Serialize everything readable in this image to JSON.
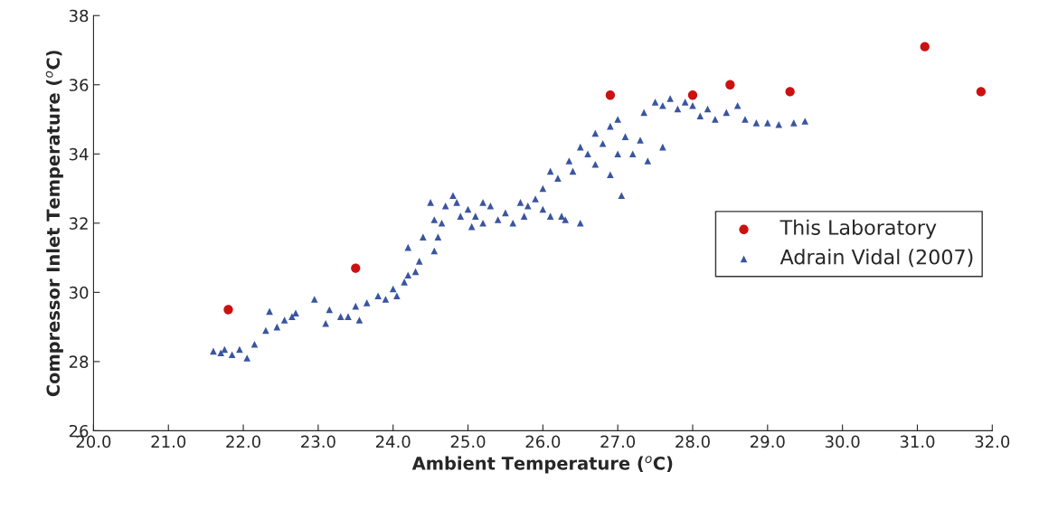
{
  "chart_data": {
    "type": "scatter",
    "xlabel": "Ambient Temperature ($^{o}$C)",
    "ylabel": "Compressor Inlet Temperature ($^{o}$C)",
    "xlim": [
      20,
      32
    ],
    "ylim": [
      26,
      38
    ],
    "xticks": [
      {
        "value": 20,
        "label": "20.0"
      },
      {
        "value": 21,
        "label": "21.0"
      },
      {
        "value": 22,
        "label": "22.0"
      },
      {
        "value": 23,
        "label": "23.0"
      },
      {
        "value": 24,
        "label": "24.0"
      },
      {
        "value": 25,
        "label": "25.0"
      },
      {
        "value": 26,
        "label": "26.0"
      },
      {
        "value": 27,
        "label": "27.0"
      },
      {
        "value": 28,
        "label": "28.0"
      },
      {
        "value": 29,
        "label": "29.0"
      },
      {
        "value": 30,
        "label": "30.0"
      },
      {
        "value": 31,
        "label": "31.0"
      },
      {
        "value": 32,
        "label": "32.0"
      }
    ],
    "yticks": [
      26,
      28,
      30,
      32,
      34,
      36,
      38
    ],
    "grid": false,
    "legend": "right",
    "series": [
      {
        "name": "This Laboratory",
        "color": "#cc1111",
        "marker": "circle",
        "x": [
          21.8,
          23.5,
          26.9,
          28.0,
          28.5,
          29.3,
          31.1,
          31.85
        ],
        "values": [
          29.5,
          30.7,
          35.7,
          35.7,
          36.0,
          35.8,
          37.1,
          35.8
        ]
      },
      {
        "name": "Adrain Vidal (2007)",
        "color": "#3a55a0",
        "marker": "triangle",
        "x": [
          21.6,
          21.7,
          21.75,
          21.85,
          21.95,
          22.05,
          22.15,
          22.3,
          22.35,
          22.45,
          22.55,
          22.65,
          22.7,
          22.95,
          23.1,
          23.15,
          23.3,
          23.4,
          23.5,
          23.55,
          23.65,
          23.8,
          23.9,
          24.0,
          24.05,
          24.15,
          24.2,
          24.3,
          24.35,
          24.4,
          24.2,
          24.55,
          24.6,
          24.65,
          24.55,
          24.5,
          24.7,
          24.85,
          25.0,
          25.1,
          25.2,
          25.3,
          25.4,
          25.5,
          25.6,
          25.7,
          25.75,
          25.9,
          26.0,
          26.1,
          26.1,
          26.25,
          26.5,
          26.2,
          26.35,
          26.5,
          26.6,
          26.7,
          26.8,
          26.9,
          27.0,
          27.05,
          27.1,
          27.2,
          27.3,
          27.35,
          27.5,
          27.6,
          27.7,
          27.8,
          27.9,
          28.0,
          28.1,
          28.2,
          28.3,
          28.45,
          28.6,
          28.7,
          28.85,
          29.0,
          29.15,
          29.35,
          29.5,
          27.6,
          27.4,
          26.9,
          26.7,
          25.8,
          26.0,
          25.2,
          24.9,
          25.05,
          24.8,
          26.3,
          27.0,
          26.4
        ],
        "values": [
          28.3,
          28.25,
          28.35,
          28.2,
          28.35,
          28.1,
          28.5,
          28.9,
          29.45,
          29.0,
          29.2,
          29.3,
          29.4,
          29.8,
          29.1,
          29.5,
          29.3,
          29.3,
          29.6,
          29.2,
          29.7,
          29.9,
          29.8,
          30.1,
          29.9,
          30.3,
          30.5,
          30.6,
          30.9,
          31.6,
          31.3,
          31.2,
          31.6,
          32.0,
          32.1,
          32.6,
          32.5,
          32.6,
          32.4,
          32.2,
          32.0,
          32.5,
          32.1,
          32.3,
          32.0,
          32.6,
          32.2,
          32.7,
          33.0,
          33.5,
          32.2,
          32.2,
          32.0,
          33.3,
          33.8,
          34.2,
          34.0,
          34.6,
          34.3,
          34.8,
          35.0,
          32.8,
          34.5,
          34.0,
          34.4,
          35.2,
          35.5,
          35.4,
          35.6,
          35.3,
          35.5,
          35.4,
          35.1,
          35.3,
          35.0,
          35.2,
          35.4,
          35.0,
          34.9,
          34.9,
          34.85,
          34.9,
          34.95,
          34.2,
          33.8,
          33.4,
          33.7,
          32.5,
          32.4,
          32.6,
          32.2,
          31.9,
          32.8,
          32.1,
          34.0,
          33.5
        ]
      }
    ]
  }
}
